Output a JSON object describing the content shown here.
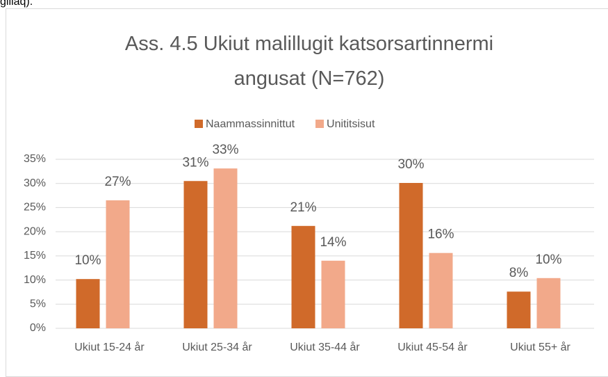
{
  "page_text": "giliaq).",
  "chart_data": {
    "type": "bar",
    "title": "Ass. 4.5 Ukiut malillugit katsorsartinnermi angusat (N=762)",
    "categories": [
      "Ukiut 15-24 år",
      "Ukiut 25-34 år",
      "Ukiut 35-44 år",
      "Ukiut 45-54 år",
      "Ukiut 55+ år"
    ],
    "series": [
      {
        "name": "Naammassinnittut",
        "color": "#d06a2a",
        "values": [
          10.2,
          30.5,
          21.2,
          30.1,
          7.6
        ],
        "value_labels": [
          "10%",
          "31%",
          "21%",
          "30%",
          "8%"
        ]
      },
      {
        "name": "Unititsisut",
        "color": "#f2a98a",
        "values": [
          26.5,
          33.1,
          14.0,
          15.6,
          10.4
        ],
        "value_labels": [
          "27%",
          "33%",
          "14%",
          "16%",
          "10%"
        ]
      }
    ],
    "ylim": [
      0,
      35
    ],
    "yticks": [
      {
        "value": 0,
        "label": "0%"
      },
      {
        "value": 5,
        "label": "5%"
      },
      {
        "value": 10,
        "label": "10%"
      },
      {
        "value": 15,
        "label": "15%"
      },
      {
        "value": 20,
        "label": "20%"
      },
      {
        "value": 25,
        "label": "25%"
      },
      {
        "value": 30,
        "label": "30%"
      },
      {
        "value": 35,
        "label": "35%"
      }
    ],
    "grid": true,
    "legend": "top"
  }
}
